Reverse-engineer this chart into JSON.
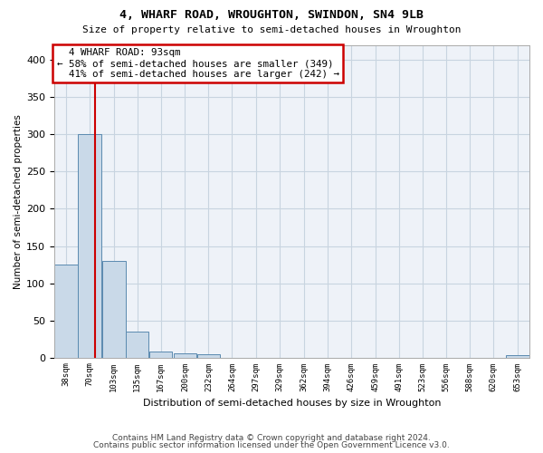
{
  "title1": "4, WHARF ROAD, WROUGHTON, SWINDON, SN4 9LB",
  "title2": "Size of property relative to semi-detached houses in Wroughton",
  "xlabel": "Distribution of semi-detached houses by size in Wroughton",
  "ylabel": "Number of semi-detached properties",
  "property_size": 93,
  "property_label": "4 WHARF ROAD: 93sqm",
  "pct_smaller": 58,
  "count_smaller": 349,
  "pct_larger": 41,
  "count_larger": 242,
  "bin_edges": [
    38,
    70,
    103,
    135,
    167,
    200,
    232,
    264,
    297,
    329,
    362,
    394,
    426,
    459,
    491,
    523,
    556,
    588,
    620,
    653,
    685
  ],
  "bar_values": [
    125,
    300,
    130,
    35,
    8,
    6,
    4,
    0,
    0,
    0,
    0,
    0,
    0,
    0,
    0,
    0,
    0,
    0,
    0,
    3
  ],
  "bar_color": "#c9d9e8",
  "bar_edge_color": "#5a8ab0",
  "highlight_line_color": "#cc0000",
  "annotation_box_color": "#cc0000",
  "grid_color": "#c8d4e0",
  "bg_color": "#eef2f8",
  "ylim": [
    0,
    420
  ],
  "yticks": [
    0,
    50,
    100,
    150,
    200,
    250,
    300,
    350,
    400
  ],
  "footer1": "Contains HM Land Registry data © Crown copyright and database right 2024.",
  "footer2": "Contains public sector information licensed under the Open Government Licence v3.0."
}
